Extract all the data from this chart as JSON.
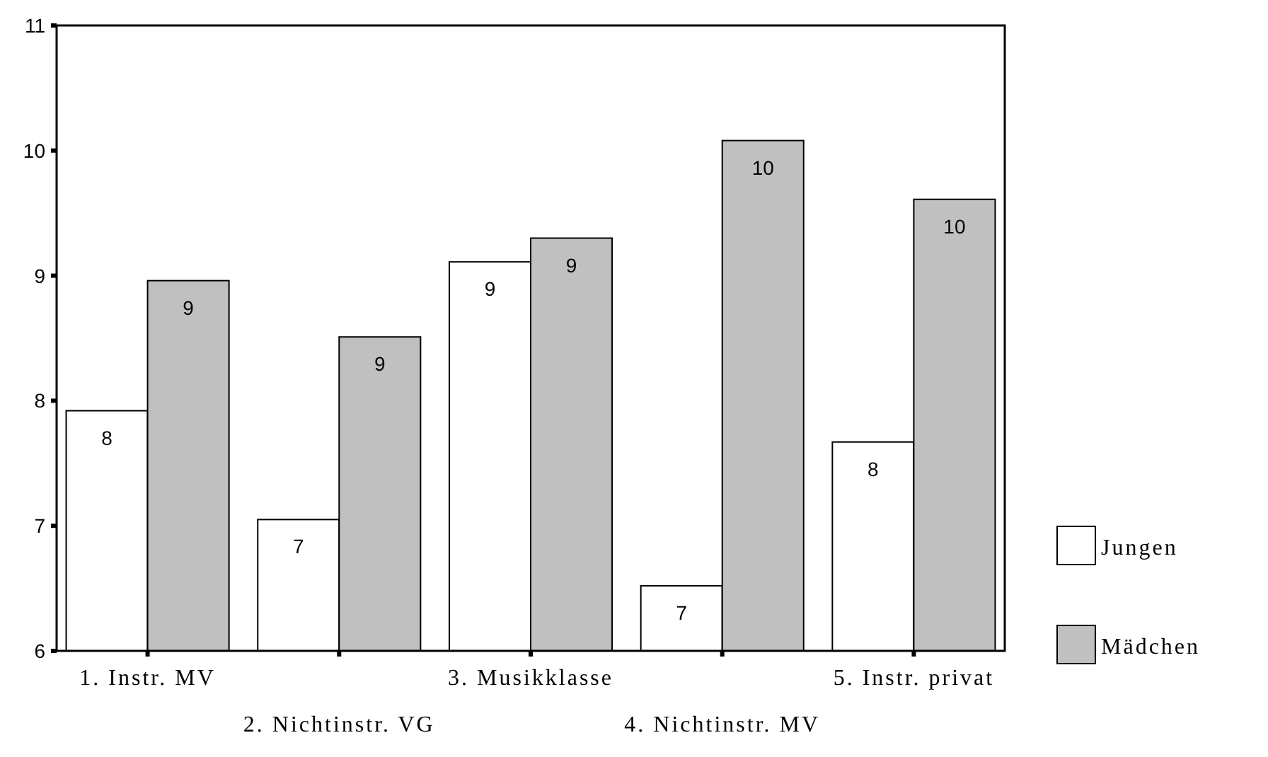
{
  "chart_data": {
    "type": "bar",
    "categories": [
      "1. Instr. MV",
      "2. Nichtinstr. VG",
      "3. Musikklasse",
      "4. Nichtinstr. MV",
      "5. Instr. privat"
    ],
    "series": [
      {
        "name": "Jungen",
        "color": "#ffffff",
        "values": [
          7.92,
          7.05,
          9.11,
          6.52,
          7.67
        ],
        "value_labels": [
          "8",
          "7",
          "9",
          "7",
          "8"
        ]
      },
      {
        "name": "Mädchen",
        "color": "#c0c0c0",
        "values": [
          8.96,
          8.51,
          9.3,
          10.08,
          9.61
        ],
        "value_labels": [
          "9",
          "9",
          "9",
          "10",
          "10"
        ]
      }
    ],
    "ylim": [
      6,
      11
    ],
    "yticks": [
      6,
      7,
      8,
      9,
      10,
      11
    ],
    "grid": false,
    "legend": "bottom right"
  }
}
